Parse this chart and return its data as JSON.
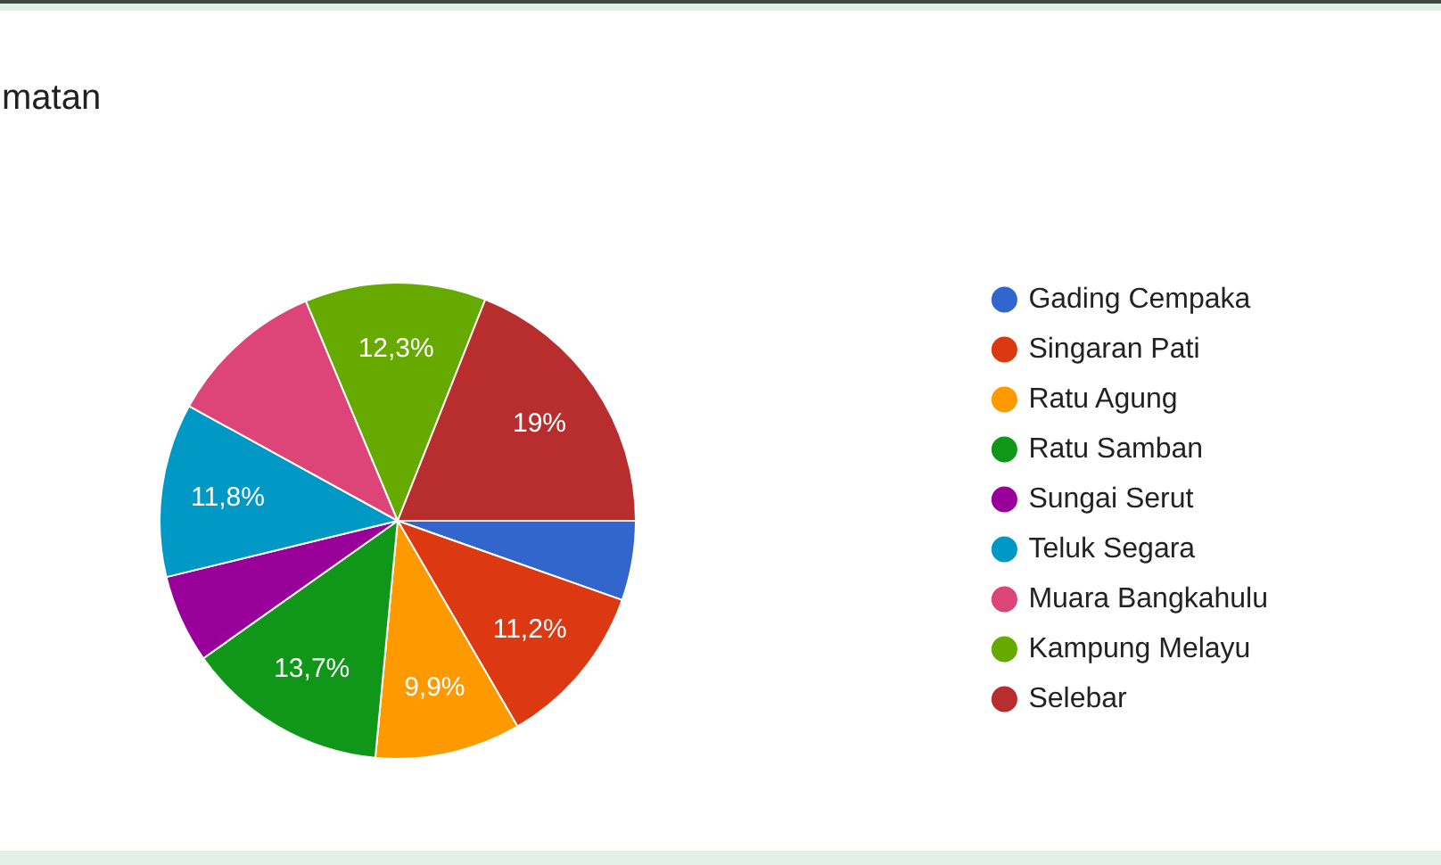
{
  "chart_data": {
    "type": "pie",
    "title": "matan",
    "categories": [
      "Gading Cempaka",
      "Singaran Pati",
      "Ratu Agung",
      "Ratu Samban",
      "Sungai Serut",
      "Teluk Segara",
      "Muara Bangkahulu",
      "Kampung Melayu",
      "Selebar"
    ],
    "values": [
      5.4,
      11.2,
      9.9,
      13.7,
      6.0,
      11.8,
      10.7,
      12.3,
      19
    ],
    "colors": [
      "#3366cc",
      "#dc3912",
      "#ff9900",
      "#109618",
      "#990099",
      "#0099c6",
      "#dd4477",
      "#66aa00",
      "#b82e2e"
    ],
    "value_labels": [
      null,
      "11,2%",
      "9,9%",
      "13,7%",
      null,
      "11,8%",
      null,
      "12,3%",
      "19%"
    ],
    "legend": "right"
  }
}
